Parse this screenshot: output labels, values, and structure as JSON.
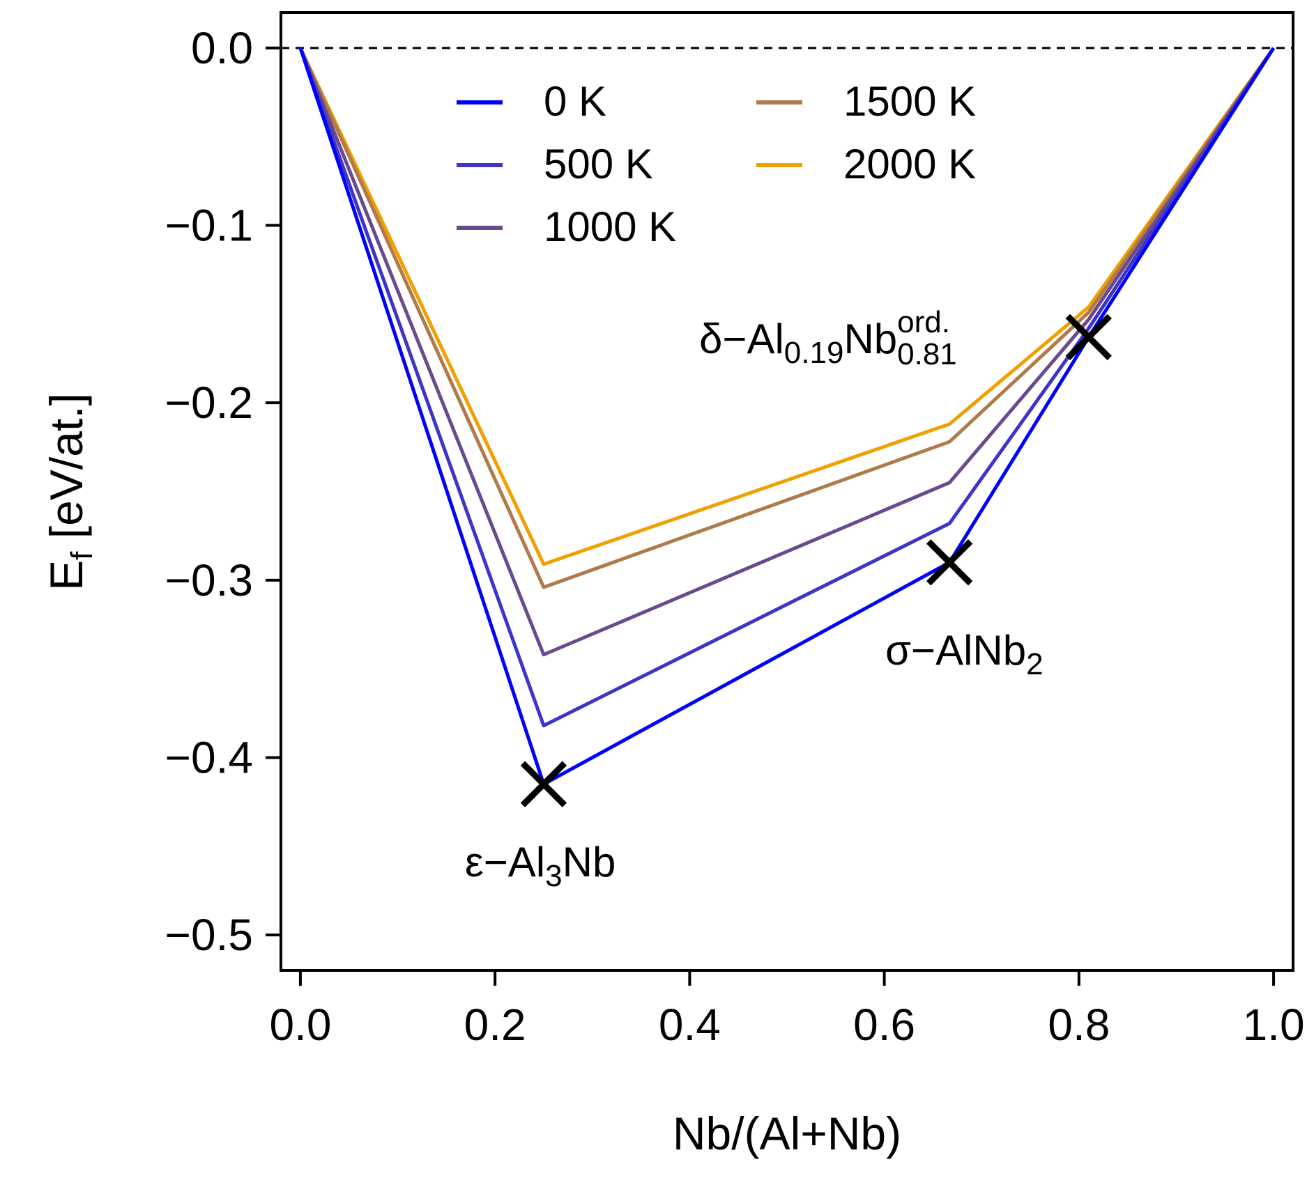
{
  "chart_data": {
    "type": "line",
    "xlabel": "Nb/(Al+Nb)",
    "ylabel": {
      "main": "E",
      "sub": "f",
      "rest": " [eV/at.]"
    },
    "xlim": [
      -0.02,
      1.02
    ],
    "ylim": [
      -0.52,
      0.02
    ],
    "xticks": [
      0.0,
      0.2,
      0.4,
      0.6,
      0.8,
      1.0
    ],
    "xtick_labels": [
      "0.0",
      "0.2",
      "0.4",
      "0.6",
      "0.8",
      "1.0"
    ],
    "yticks": [
      0.0,
      -0.1,
      -0.2,
      -0.3,
      -0.4,
      -0.5
    ],
    "ytick_labels": [
      "0.0",
      "−0.1",
      "−0.2",
      "−0.3",
      "−0.4",
      "−0.5"
    ],
    "reference_line": {
      "y": 0.0,
      "style": "dashed"
    },
    "x": [
      0.0,
      0.25,
      0.667,
      0.81,
      1.0
    ],
    "series": [
      {
        "name": "0 K",
        "color": "#0000ff",
        "values": [
          0.0,
          -0.415,
          -0.29,
          -0.163,
          0.0
        ]
      },
      {
        "name": "500 K",
        "color": "#3f33c8",
        "values": [
          0.0,
          -0.382,
          -0.268,
          -0.158,
          0.0
        ]
      },
      {
        "name": "1000 K",
        "color": "#6a4a8e",
        "values": [
          0.0,
          -0.342,
          -0.245,
          -0.153,
          0.0
        ]
      },
      {
        "name": "1500 K",
        "color": "#b07a4a",
        "values": [
          0.0,
          -0.304,
          -0.222,
          -0.149,
          0.0
        ]
      },
      {
        "name": "2000 K",
        "color": "#f0a000",
        "values": [
          0.0,
          -0.291,
          -0.212,
          -0.146,
          0.0
        ]
      }
    ],
    "legend": {
      "placement": "top-center",
      "columns": 2
    },
    "markers": [
      {
        "name": "epsilon-al3nb",
        "x": 0.25,
        "y": -0.415,
        "symbol": "x"
      },
      {
        "name": "sigma-alnb2",
        "x": 0.667,
        "y": -0.29,
        "symbol": "x"
      },
      {
        "name": "delta-al019nb081",
        "x": 0.81,
        "y": -0.163,
        "symbol": "x"
      }
    ],
    "annotations": [
      {
        "name": "epsilon-al3nb",
        "parts": [
          {
            "text": "ε−Al",
            "shift": "normal"
          },
          {
            "text": "3",
            "shift": "sub"
          },
          {
            "text": "Nb",
            "shift": "normal"
          }
        ]
      },
      {
        "name": "sigma-alnb2",
        "parts": [
          {
            "text": "σ−AlNb",
            "shift": "normal"
          },
          {
            "text": "2",
            "shift": "sub"
          }
        ]
      },
      {
        "name": "delta-al019nb081",
        "parts": [
          {
            "text": "δ−Al",
            "shift": "normal"
          },
          {
            "text": "0.19",
            "shift": "sub"
          },
          {
            "text": "Nb",
            "shift": "normal"
          },
          {
            "text": "ord.",
            "shift": "sup"
          },
          {
            "text": "0.81",
            "shift": "sub-under"
          }
        ]
      }
    ]
  }
}
